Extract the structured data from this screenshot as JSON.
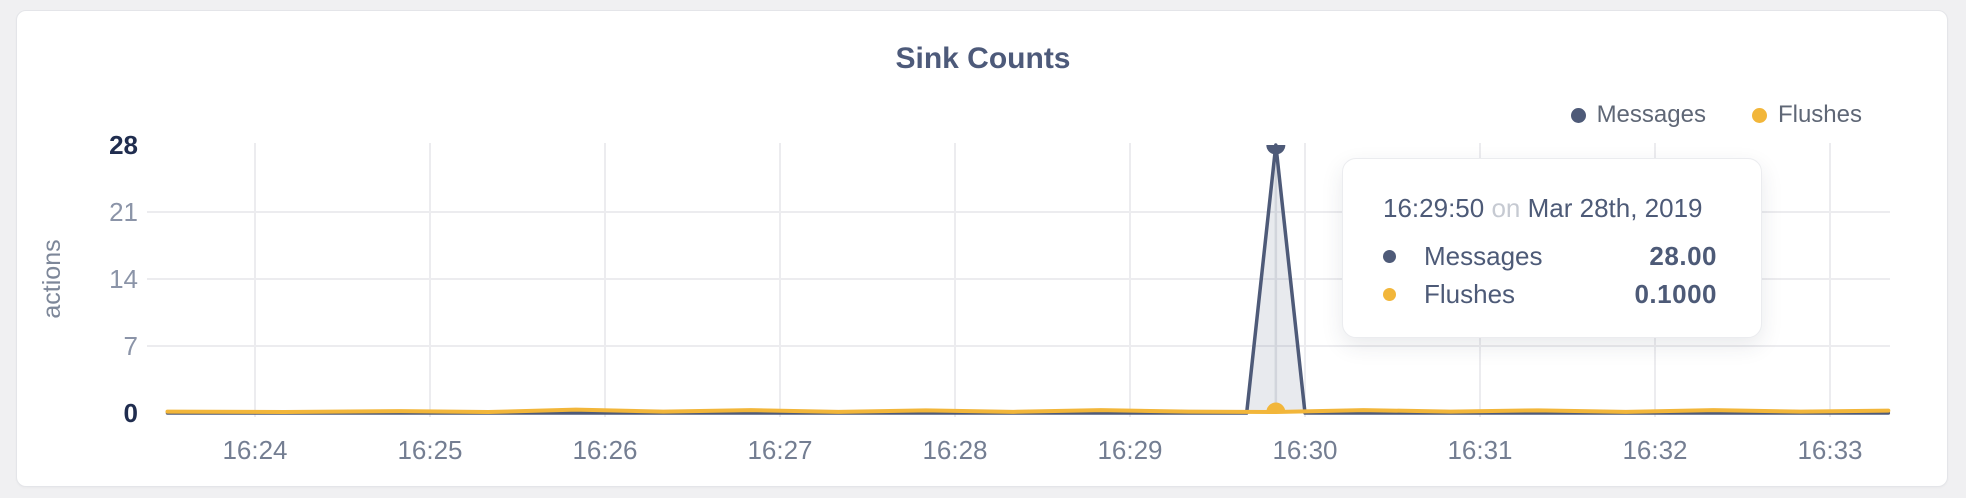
{
  "header": {
    "title": "Sink Counts"
  },
  "colors": {
    "messages": "#4e5a78",
    "flushes": "#f2b63a",
    "messages_fill": "rgba(79,91,121,0.13)",
    "gridline": "#ececef",
    "crosshair": "#d2d5dc",
    "title_text": "#4d5a7a",
    "axis_text": "#7d8799",
    "tick_strong": "#202d4f",
    "tick_muted": "#8b94a8"
  },
  "legend": {
    "items": [
      {
        "label": "Messages",
        "color": "#4e5a78"
      },
      {
        "label": "Flushes",
        "color": "#f2b63a"
      }
    ]
  },
  "tooltip": {
    "time": "16:29:50",
    "separator": "on",
    "date": "Mar 28th, 2019",
    "rows": [
      {
        "label": "Messages",
        "color": "#4e5a78",
        "value": "28.00"
      },
      {
        "label": "Flushes",
        "color": "#f2b63a",
        "value": "0.1000"
      }
    ]
  },
  "chart_data": {
    "type": "line",
    "title": "Sink Counts",
    "xlabel": "",
    "ylabel": "actions",
    "ylim": [
      0,
      28
    ],
    "y_ticks": [
      0,
      7,
      14,
      21,
      28
    ],
    "y_ticks_strong": [
      0,
      28
    ],
    "x_ticks": [
      "16:24",
      "16:25",
      "16:26",
      "16:27",
      "16:28",
      "16:29",
      "16:30",
      "16:31",
      "16:32",
      "16:33"
    ],
    "x_domain": [
      "16:23:30",
      "16:33:20"
    ],
    "grid": true,
    "legend_position": "top-right",
    "hover_time": "16:29:50",
    "series": [
      {
        "name": "Messages",
        "color": "#4e5a78",
        "fill": "rgba(79,91,121,0.13)",
        "points": [
          [
            "16:23:30",
            0
          ],
          [
            "16:29:40",
            0
          ],
          [
            "16:29:50",
            28
          ],
          [
            "16:30:00",
            0
          ],
          [
            "16:33:20",
            0
          ]
        ]
      },
      {
        "name": "Flushes",
        "color": "#f2b63a",
        "points": [
          [
            "16:23:30",
            0.15
          ],
          [
            "16:24:10",
            0.1
          ],
          [
            "16:24:50",
            0.2
          ],
          [
            "16:25:20",
            0.1
          ],
          [
            "16:25:50",
            0.35
          ],
          [
            "16:26:20",
            0.15
          ],
          [
            "16:26:50",
            0.3
          ],
          [
            "16:27:20",
            0.12
          ],
          [
            "16:27:50",
            0.28
          ],
          [
            "16:28:20",
            0.12
          ],
          [
            "16:28:50",
            0.3
          ],
          [
            "16:29:20",
            0.15
          ],
          [
            "16:29:50",
            0.1
          ],
          [
            "16:30:20",
            0.3
          ],
          [
            "16:30:50",
            0.15
          ],
          [
            "16:31:20",
            0.28
          ],
          [
            "16:31:50",
            0.12
          ],
          [
            "16:32:20",
            0.3
          ],
          [
            "16:32:50",
            0.15
          ],
          [
            "16:33:20",
            0.25
          ]
        ]
      }
    ]
  }
}
